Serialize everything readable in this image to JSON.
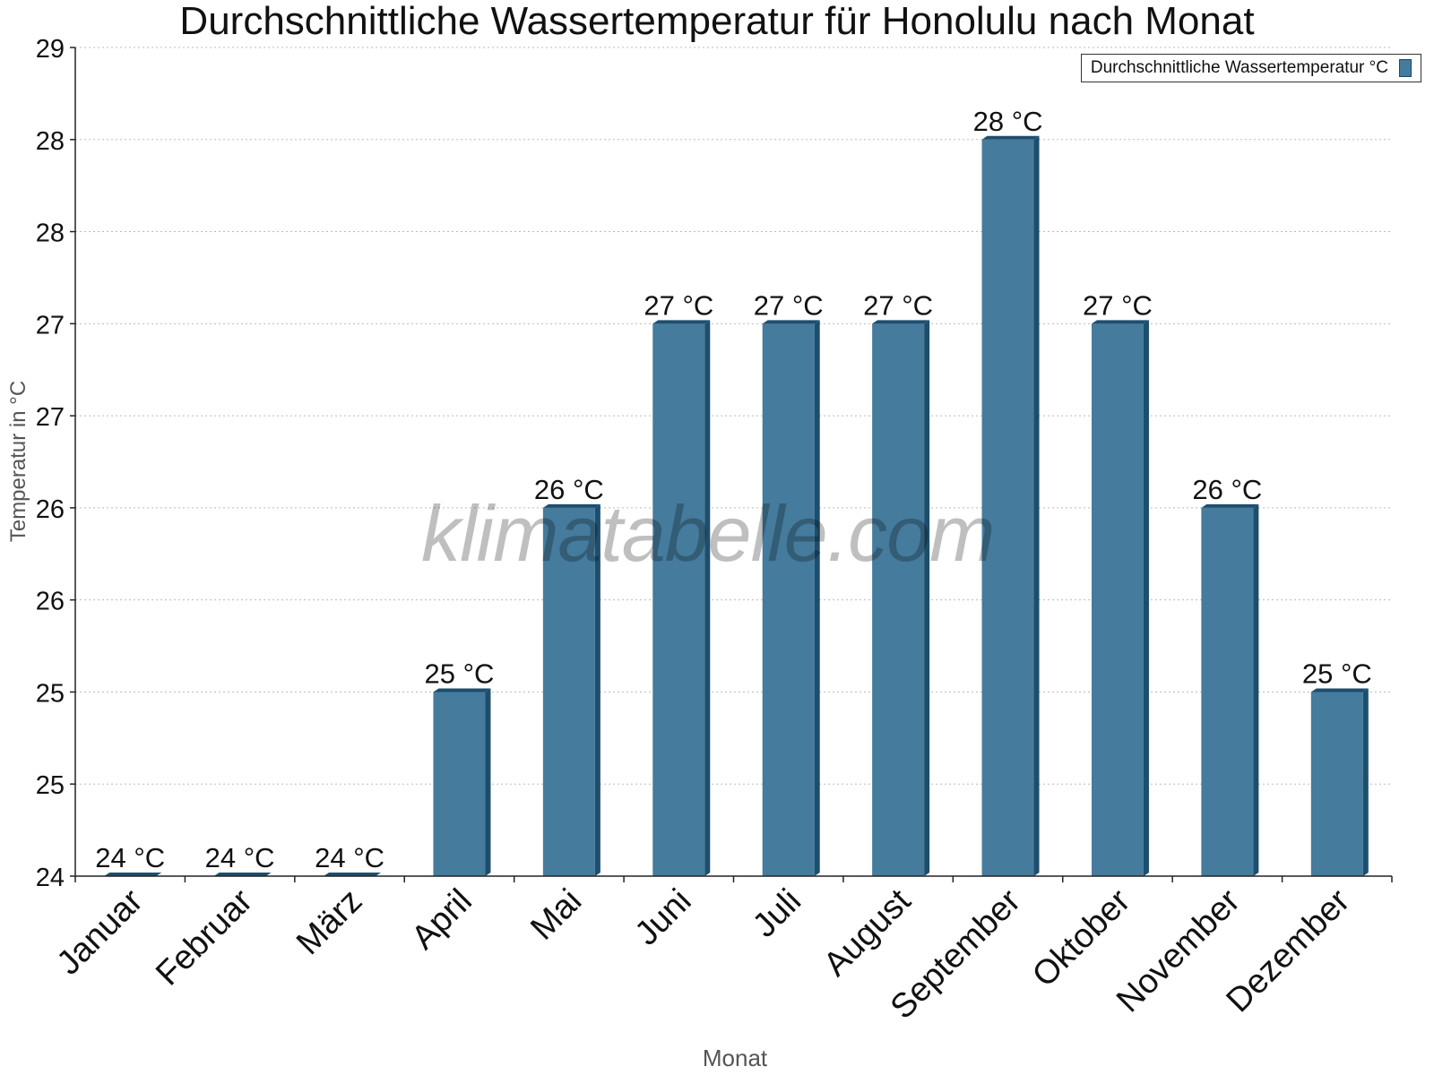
{
  "chart_data": {
    "type": "bar",
    "title": "Durchschnittliche Wassertemperatur für Honolulu nach Monat",
    "xlabel": "Monat",
    "ylabel": "Temperatur in °C",
    "ylim": [
      24,
      28.5
    ],
    "yticks": [
      24,
      24.5,
      25,
      25.5,
      26,
      26.5,
      27,
      27.5,
      28,
      28.5
    ],
    "ytick_labels": [
      "24",
      "25",
      "25",
      "26",
      "26",
      "27",
      "27",
      "28",
      "28",
      "29"
    ],
    "categories": [
      "Januar",
      "Februar",
      "März",
      "April",
      "Mai",
      "Juni",
      "Juli",
      "August",
      "September",
      "Oktober",
      "November",
      "Dezember"
    ],
    "series": [
      {
        "name": "Durchschnittliche Wassertemperatur °C",
        "values": [
          24,
          24,
          24,
          25,
          26,
          27,
          27,
          27,
          28,
          27,
          26,
          25
        ],
        "labels": [
          "24 °C",
          "24 °C",
          "24 °C",
          "25 °C",
          "26 °C",
          "27 °C",
          "27 °C",
          "27 °C",
          "28 °C",
          "27 °C",
          "26 °C",
          "25 °C"
        ]
      }
    ],
    "grid": true,
    "legend_position": "top-right",
    "colors": {
      "bar": "#457b9d",
      "bar_side": "#1d4e6e",
      "grid": "#bbbbbb"
    }
  },
  "watermark": "klimatabelle.com"
}
